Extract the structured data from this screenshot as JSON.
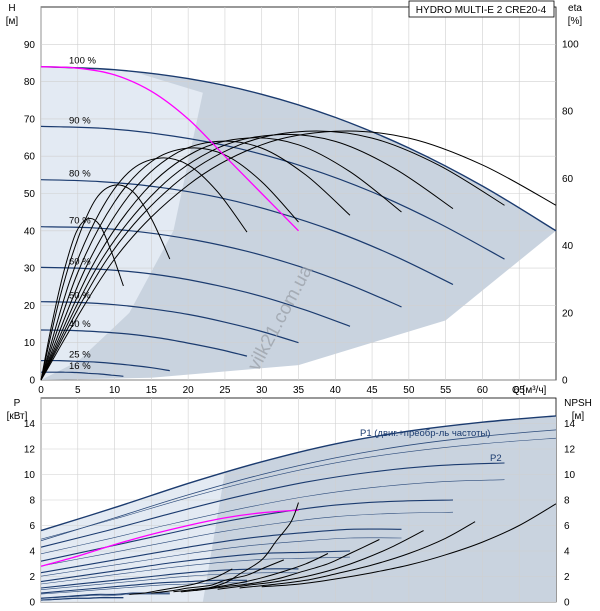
{
  "title": "HYDRO MULTI-E 2 CRE20-4",
  "watermark": "vilk21.com.ua",
  "colors": {
    "grid": "#d0d0d0",
    "area": "#c9d3df",
    "area_light": "#e3eaf3",
    "speed_curve": "#1b3b6f",
    "thin_curve": "#2b4a7a",
    "max_curve": "#ff00ff",
    "eta_curve": "#000000",
    "watermark": "#9aa0a8"
  },
  "chart_data": [
    {
      "type": "line",
      "name": "head",
      "xlabel": "Q [м³/ч]",
      "ylabel": "H [м]",
      "y2label": "eta [%]",
      "xlim": [
        0,
        70
      ],
      "ylim": [
        0,
        100
      ],
      "y2lim": [
        0,
        111
      ],
      "xticks": [
        0,
        5,
        10,
        15,
        20,
        25,
        30,
        35,
        40,
        45,
        50,
        55,
        60,
        65
      ],
      "yticks": [
        0,
        10,
        20,
        30,
        40,
        50,
        60,
        70,
        80,
        90
      ],
      "y2ticks": [
        0,
        20,
        40,
        60,
        80,
        100
      ],
      "grid": true,
      "speed_curves": [
        {
          "label": "100 %",
          "q": [
            0,
            10,
            20,
            30,
            40,
            50,
            60,
            70
          ],
          "h": [
            84,
            83.2,
            80.8,
            76.6,
            70.4,
            62.2,
            52,
            40
          ]
        },
        {
          "label": "90 %",
          "q": [
            0,
            9,
            18,
            27,
            36,
            45,
            54,
            63
          ],
          "h": [
            68,
            67.4,
            65.4,
            62,
            57,
            50.4,
            42.1,
            32.4
          ]
        },
        {
          "label": "80 %",
          "q": [
            0,
            8,
            16,
            24,
            32,
            40,
            48,
            56
          ],
          "h": [
            53.7,
            53.2,
            51.7,
            49,
            45,
            39.8,
            33.3,
            25.6
          ]
        },
        {
          "label": "70 %",
          "q": [
            0,
            7,
            14,
            21,
            28,
            35,
            42,
            49
          ],
          "h": [
            41.1,
            40.8,
            39.6,
            37.5,
            34.5,
            30.5,
            25.5,
            19.6
          ]
        },
        {
          "label": "60 %",
          "q": [
            0,
            6,
            12,
            18,
            24,
            30,
            36,
            42
          ],
          "h": [
            30.2,
            29.9,
            29.1,
            27.6,
            25.3,
            22.4,
            18.7,
            14.4
          ]
        },
        {
          "label": "50 %",
          "q": [
            0,
            5,
            10,
            15,
            20,
            25,
            30,
            35
          ],
          "h": [
            21,
            20.8,
            20.2,
            19.1,
            17.6,
            15.5,
            13,
            10
          ]
        },
        {
          "label": "40 %",
          "q": [
            0,
            4,
            8,
            12,
            16,
            20,
            24,
            28
          ],
          "h": [
            13.4,
            13.3,
            12.9,
            12.3,
            11.3,
            9.9,
            8.3,
            6.4
          ]
        },
        {
          "label": "25 %",
          "q": [
            0,
            2.5,
            5,
            7.5,
            10,
            12.5,
            15,
            17.5
          ],
          "h": [
            5.2,
            5.2,
            5,
            4.8,
            4.4,
            3.9,
            3.3,
            2.5
          ]
        },
        {
          "label": "16 %",
          "q": [
            0,
            1.6,
            3.2,
            4.8,
            6.4,
            8,
            9.6,
            11.2
          ],
          "h": [
            2.1,
            2.1,
            2.1,
            2,
            1.8,
            1.6,
            1.3,
            1
          ]
        }
      ],
      "max_curve": {
        "q": [
          0,
          5,
          10,
          15,
          20,
          25,
          30,
          35
        ],
        "h": [
          84,
          83.6,
          81.8,
          77.4,
          70,
          60,
          50,
          40
        ]
      },
      "eta_curves": [
        {
          "q": [
            0,
            10,
            20,
            30,
            40,
            50,
            60,
            70
          ],
          "eta": [
            0,
            36,
            58,
            70,
            74,
            72,
            64,
            52
          ]
        },
        {
          "q": [
            0,
            9,
            18,
            27,
            36,
            45,
            54,
            63
          ],
          "eta": [
            0,
            36,
            58,
            70,
            74,
            72,
            64,
            52
          ]
        },
        {
          "q": [
            0,
            8,
            16,
            24,
            32,
            40,
            48,
            56
          ],
          "eta": [
            0,
            35,
            57,
            69,
            73,
            71,
            63,
            51
          ]
        },
        {
          "q": [
            0,
            7,
            14,
            21,
            28,
            35,
            42,
            49
          ],
          "eta": [
            0,
            34,
            56,
            68,
            72,
            70,
            62,
            50
          ]
        },
        {
          "q": [
            0,
            6,
            12,
            18,
            24,
            30,
            36,
            42
          ],
          "eta": [
            0,
            33,
            55,
            67,
            71,
            69,
            61,
            49
          ]
        },
        {
          "q": [
            0,
            5,
            10,
            15,
            20,
            25,
            30,
            35
          ],
          "eta": [
            0,
            32,
            53,
            65,
            69,
            67,
            59,
            47
          ]
        },
        {
          "q": [
            0,
            4,
            8,
            12,
            16,
            20,
            24,
            28
          ],
          "eta": [
            0,
            30,
            50,
            62,
            66,
            64,
            56,
            44
          ]
        },
        {
          "q": [
            0,
            2.5,
            5,
            7.5,
            10,
            12.5,
            15,
            17.5
          ],
          "eta": [
            0,
            24,
            42,
            54,
            58,
            56,
            48,
            36
          ]
        },
        {
          "q": [
            0,
            1.6,
            3.2,
            4.8,
            6.4,
            8,
            9.6,
            11.2
          ],
          "eta": [
            0,
            18,
            33,
            44,
            48,
            46,
            38,
            28
          ]
        }
      ]
    },
    {
      "type": "line",
      "name": "power",
      "xlim": [
        0,
        70
      ],
      "ylim": [
        0,
        16
      ],
      "y2lim": [
        0,
        16
      ],
      "ylabel": "P [кВт]",
      "y2label": "NPSH [м]",
      "yticks": [
        0,
        2,
        4,
        6,
        8,
        10,
        12,
        14
      ],
      "y2ticks": [
        0,
        2,
        4,
        6,
        8,
        10,
        12,
        14
      ],
      "grid": true,
      "legend_p1": "P1 (двиг.+преобр-ль частоты)",
      "legend_p2": "P2",
      "p1_curves": [
        {
          "q": [
            0,
            10,
            20,
            30,
            40,
            50,
            60,
            70
          ],
          "p": [
            5.6,
            7.4,
            9.3,
            11,
            12.4,
            13.4,
            14.1,
            14.6
          ]
        },
        {
          "q": [
            0,
            9,
            18,
            27,
            36,
            45,
            54,
            63
          ],
          "p": [
            4.3,
            5.6,
            7,
            8.3,
            9.4,
            10.2,
            10.7,
            10.9
          ]
        },
        {
          "q": [
            0,
            8,
            16,
            24,
            32,
            40,
            48,
            56
          ],
          "p": [
            3.2,
            4.2,
            5.2,
            6.2,
            7,
            7.6,
            7.9,
            8
          ]
        },
        {
          "q": [
            0,
            7,
            14,
            21,
            28,
            35,
            42,
            49
          ],
          "p": [
            2.3,
            3,
            3.7,
            4.4,
            5,
            5.4,
            5.7,
            5.7
          ]
        },
        {
          "q": [
            0,
            6,
            12,
            18,
            24,
            30,
            36,
            42
          ],
          "p": [
            1.6,
            2.1,
            2.6,
            3.1,
            3.5,
            3.8,
            3.9,
            4
          ]
        },
        {
          "q": [
            0,
            5,
            10,
            15,
            20,
            25,
            30,
            35
          ],
          "p": [
            1.1,
            1.4,
            1.7,
            2,
            2.3,
            2.5,
            2.6,
            2.6
          ]
        },
        {
          "q": [
            0,
            4,
            8,
            12,
            16,
            20,
            24,
            28
          ],
          "p": [
            0.7,
            0.9,
            1.1,
            1.3,
            1.5,
            1.6,
            1.7,
            1.7
          ]
        },
        {
          "q": [
            0,
            2.5,
            5,
            7.5,
            10,
            12.5,
            15,
            17.5
          ],
          "p": [
            0.3,
            0.4,
            0.5,
            0.6,
            0.6,
            0.7,
            0.7,
            0.7
          ]
        },
        {
          "q": [
            0,
            1.6,
            3.2,
            4.8,
            6.4,
            8,
            9.6,
            11.2
          ],
          "p": [
            0.15,
            0.2,
            0.25,
            0.3,
            0.3,
            0.35,
            0.35,
            0.35
          ]
        }
      ],
      "p2_curve": {
        "q": [
          0,
          10,
          20,
          30,
          40,
          50,
          60,
          70
        ],
        "p": [
          4.8,
          6.6,
          8.4,
          10,
          11.3,
          12.3,
          13,
          13.5
        ]
      },
      "p_max_curve": {
        "q": [
          0,
          5,
          10,
          15,
          20,
          25,
          30,
          35
        ],
        "p": [
          2.8,
          3.6,
          4.5,
          5.3,
          6,
          6.6,
          7,
          7.2
        ]
      },
      "npsh_curves": [
        {
          "q": [
            30,
            35,
            40,
            45,
            50,
            55,
            60,
            65,
            70
          ],
          "npsh": [
            1.2,
            1.4,
            1.8,
            2.3,
            2.9,
            3.7,
            4.7,
            6,
            7.7
          ]
        },
        {
          "q": [
            27,
            32,
            36,
            40,
            45,
            50,
            55,
            59
          ],
          "npsh": [
            1.1,
            1.4,
            1.7,
            2.2,
            2.9,
            3.8,
            5,
            6.3
          ]
        },
        {
          "q": [
            24,
            28,
            32,
            36,
            40,
            44,
            48,
            52
          ],
          "npsh": [
            1,
            1.3,
            1.6,
            2,
            2.6,
            3.4,
            4.4,
            5.6
          ]
        },
        {
          "q": [
            21,
            25,
            28,
            32,
            35,
            39,
            42,
            46
          ],
          "npsh": [
            0.9,
            1.2,
            1.4,
            1.8,
            2.3,
            3,
            3.8,
            4.9
          ]
        },
        {
          "q": [
            18,
            21,
            24,
            27,
            30,
            33,
            36,
            39
          ],
          "npsh": [
            0.8,
            1,
            1.2,
            1.5,
            1.9,
            2.4,
            3,
            3.8
          ]
        },
        {
          "q": [
            15,
            18,
            20,
            23,
            25,
            28,
            30,
            33
          ],
          "npsh": [
            0.7,
            0.9,
            1.1,
            1.3,
            1.7,
            2.1,
            2.6,
            3.3
          ]
        },
        {
          "q": [
            12,
            14,
            16,
            18,
            20,
            22,
            24,
            26
          ],
          "npsh": [
            0.6,
            0.7,
            0.9,
            1.1,
            1.3,
            1.6,
            2,
            2.6
          ]
        },
        {
          "q": [
            19,
            22,
            25,
            27,
            30,
            32,
            34,
            35
          ],
          "npsh": [
            0.8,
            1,
            1.5,
            2.2,
            3.3,
            4.8,
            6.3,
            7.8
          ]
        }
      ]
    }
  ]
}
